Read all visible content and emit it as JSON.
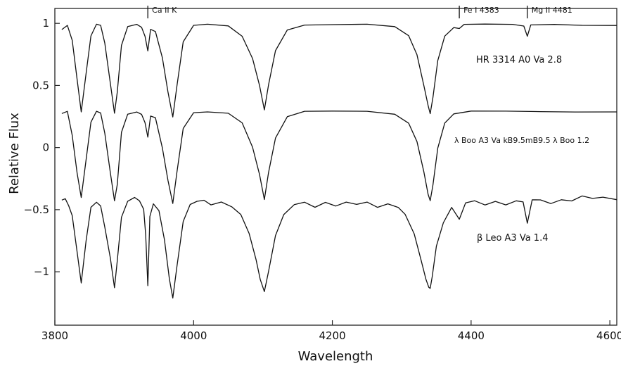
{
  "chart_data": {
    "type": "line",
    "xlabel": "Wavelength",
    "ylabel": "Relative Flux",
    "xlim": [
      3800,
      4610
    ],
    "ylim": [
      -1.43,
      1.12
    ],
    "xticks": [
      3800,
      4000,
      4200,
      4400,
      4600
    ],
    "xtick_labels": [
      "3800",
      "4000",
      "4200",
      "4400",
      "4600"
    ],
    "yticks": [
      1,
      0.5,
      0,
      -0.5,
      -1
    ],
    "ytick_labels": [
      "1",
      "0.5",
      "0",
      "−0.5",
      "−1"
    ],
    "grid": false,
    "line_markers": [
      {
        "label": "Ca II K",
        "wavelength": 3934,
        "flux": 1.04
      },
      {
        "label": "Fe I 4383",
        "wavelength": 4383,
        "flux": 1.04
      },
      {
        "label": "Mg II 4481",
        "wavelength": 4481,
        "flux": 1.04
      }
    ],
    "series": [
      {
        "name": "HR 3314  A0 Va   2.8",
        "continuum": 1.0,
        "x": [
          3810,
          3818,
          3825,
          3832,
          3838,
          3845,
          3852,
          3860,
          3866,
          3872,
          3880,
          3886,
          3890,
          3896,
          3905,
          3918,
          3925,
          3930,
          3934,
          3938,
          3945,
          3955,
          3963,
          3970,
          3976,
          3985,
          4000,
          4020,
          4050,
          4070,
          4085,
          4095,
          4102,
          4108,
          4118,
          4135,
          4160,
          4200,
          4250,
          4290,
          4310,
          4322,
          4332,
          4338,
          4341,
          4345,
          4352,
          4362,
          4375,
          4383,
          4390,
          4420,
          4460,
          4476,
          4481,
          4486,
          4520,
          4560,
          4610
        ],
        "y": [
          0.95,
          0.98,
          0.86,
          0.55,
          0.29,
          0.6,
          0.9,
          0.99,
          0.98,
          0.84,
          0.52,
          0.28,
          0.45,
          0.82,
          0.97,
          0.99,
          0.97,
          0.9,
          0.78,
          0.95,
          0.93,
          0.72,
          0.45,
          0.25,
          0.5,
          0.85,
          0.98,
          0.99,
          0.98,
          0.9,
          0.72,
          0.5,
          0.3,
          0.5,
          0.78,
          0.95,
          0.99,
          0.99,
          0.99,
          0.97,
          0.9,
          0.75,
          0.5,
          0.34,
          0.27,
          0.4,
          0.7,
          0.9,
          0.97,
          0.96,
          0.99,
          0.99,
          0.99,
          0.98,
          0.9,
          0.99,
          0.99,
          0.98,
          0.98
        ]
      },
      {
        "name": "λ Boo  A3 Va kB9.5mB9.5 λ Boo  1.2",
        "continuum": 0.3,
        "x": [
          3810,
          3818,
          3825,
          3832,
          3838,
          3845,
          3852,
          3860,
          3866,
          3872,
          3880,
          3886,
          3890,
          3896,
          3905,
          3918,
          3925,
          3930,
          3934,
          3938,
          3945,
          3955,
          3963,
          3970,
          3976,
          3985,
          4000,
          4020,
          4050,
          4070,
          4085,
          4095,
          4102,
          4108,
          4118,
          4135,
          4160,
          4200,
          4250,
          4290,
          4310,
          4322,
          4332,
          4338,
          4341,
          4345,
          4352,
          4362,
          4375,
          4400,
          4450,
          4500,
          4550,
          4610
        ],
        "y": [
          0.27,
          0.29,
          0.1,
          -0.2,
          -0.4,
          -0.1,
          0.2,
          0.29,
          0.28,
          0.12,
          -0.2,
          -0.43,
          -0.3,
          0.12,
          0.27,
          0.29,
          0.27,
          0.2,
          0.08,
          0.25,
          0.24,
          0.0,
          -0.26,
          -0.45,
          -0.2,
          0.15,
          0.28,
          0.29,
          0.28,
          0.2,
          0.0,
          -0.22,
          -0.42,
          -0.2,
          0.08,
          0.25,
          0.29,
          0.29,
          0.29,
          0.27,
          0.2,
          0.05,
          -0.2,
          -0.38,
          -0.43,
          -0.3,
          0.0,
          0.2,
          0.27,
          0.29,
          0.29,
          0.29,
          0.29,
          0.29
        ]
      },
      {
        "name": "β Leo  A3 Va   1.4",
        "continuum": -0.4,
        "x": [
          3810,
          3815,
          3820,
          3825,
          3832,
          3838,
          3845,
          3852,
          3860,
          3866,
          3872,
          3880,
          3886,
          3890,
          3896,
          3905,
          3915,
          3922,
          3928,
          3931,
          3934,
          3937,
          3942,
          3950,
          3958,
          3965,
          3970,
          3976,
          3985,
          3995,
          4005,
          4015,
          4025,
          4040,
          4055,
          4068,
          4080,
          4090,
          4096,
          4102,
          4108,
          4118,
          4130,
          4145,
          4160,
          4175,
          4190,
          4205,
          4220,
          4235,
          4250,
          4265,
          4280,
          4295,
          4305,
          4318,
          4328,
          4335,
          4339,
          4341,
          4344,
          4350,
          4360,
          4372,
          4383,
          4392,
          4405,
          4420,
          4435,
          4450,
          4465,
          4475,
          4481,
          4488,
          4500,
          4515,
          4530,
          4545,
          4560,
          4575,
          4590,
          4610
        ],
        "y": [
          -0.42,
          -0.4,
          -0.46,
          -0.55,
          -0.85,
          -1.1,
          -0.75,
          -0.47,
          -0.43,
          -0.47,
          -0.65,
          -0.9,
          -1.13,
          -0.9,
          -0.55,
          -0.43,
          -0.41,
          -0.44,
          -0.5,
          -0.7,
          -1.1,
          -0.55,
          -0.46,
          -0.52,
          -0.75,
          -1.05,
          -1.2,
          -0.95,
          -0.6,
          -0.47,
          -0.44,
          -0.42,
          -0.45,
          -0.43,
          -0.48,
          -0.55,
          -0.7,
          -0.9,
          -1.05,
          -1.15,
          -1.0,
          -0.72,
          -0.55,
          -0.46,
          -0.43,
          -0.47,
          -0.44,
          -0.48,
          -0.45,
          -0.46,
          -0.43,
          -0.47,
          -0.45,
          -0.49,
          -0.55,
          -0.7,
          -0.9,
          -1.05,
          -1.12,
          -1.14,
          -1.05,
          -0.8,
          -0.6,
          -0.47,
          -0.57,
          -0.45,
          -0.44,
          -0.47,
          -0.43,
          -0.45,
          -0.42,
          -0.44,
          -0.62,
          -0.43,
          -0.42,
          -0.44,
          -0.41,
          -0.43,
          -0.4,
          -0.42,
          -0.4,
          -0.41
        ]
      }
    ]
  }
}
